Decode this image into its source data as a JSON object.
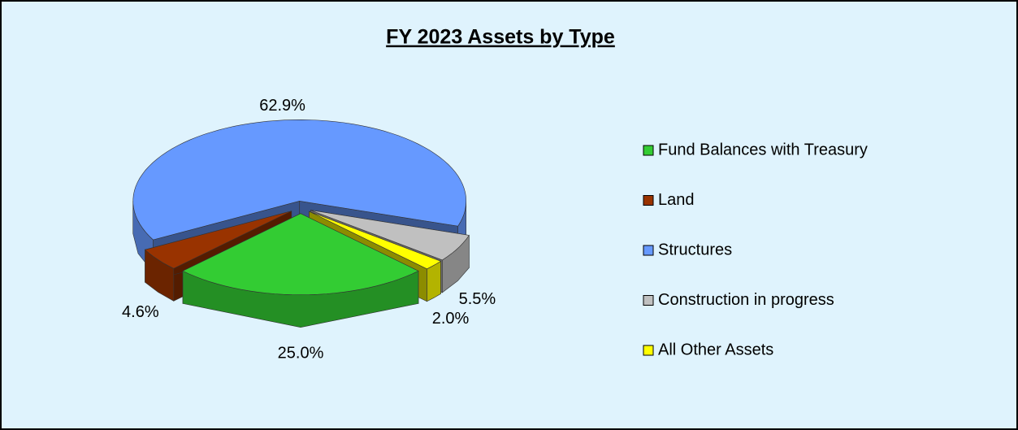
{
  "chart_data": {
    "type": "pie",
    "title": "FY 2023 Assets by Type",
    "categories": [
      "Fund Balances with Treasury",
      "Land",
      "Structures",
      "Construction in progress",
      "All Other Assets"
    ],
    "values": [
      25.0,
      4.6,
      62.9,
      5.5,
      2.0
    ],
    "value_labels": [
      "25.0%",
      "4.6%",
      "62.9%",
      "5.5%",
      "2.0%"
    ],
    "colors": [
      "#33cc33",
      "#993300",
      "#6699ff",
      "#c0c0c0",
      "#ffff00"
    ],
    "legend": "right"
  }
}
